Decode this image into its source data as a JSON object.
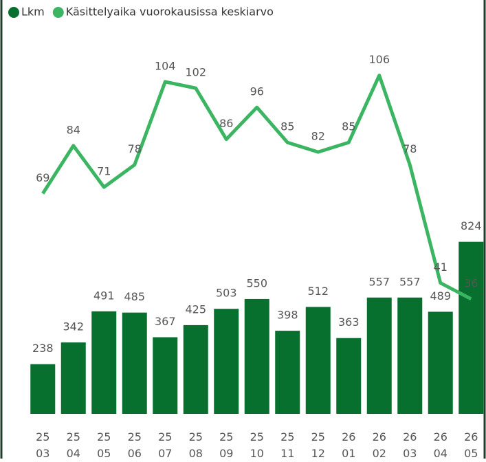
{
  "chart_data": {
    "type": "bar-line",
    "categories": [
      "25 03",
      "25 04",
      "25 05",
      "25 06",
      "25 07",
      "25 08",
      "25 09",
      "25 10",
      "25 11",
      "25 12",
      "26 01",
      "26 02",
      "26 03",
      "26 04",
      "26 05"
    ],
    "series": [
      {
        "name": "Lkm",
        "color": "#07702f",
        "type": "bar",
        "values": [
          238,
          342,
          491,
          485,
          367,
          425,
          503,
          550,
          398,
          512,
          363,
          557,
          557,
          489,
          824
        ]
      },
      {
        "name": "Käsittelyaika vuorokausissa keskiarvo",
        "color": "#3cb563",
        "type": "line",
        "axis": "y2",
        "values": [
          69,
          84,
          71,
          78,
          104,
          102,
          86,
          96,
          85,
          82,
          85,
          106,
          78,
          41,
          36
        ]
      }
    ],
    "ylim": [
      0,
      1850
    ],
    "y2lim": [
      0,
      121
    ]
  }
}
